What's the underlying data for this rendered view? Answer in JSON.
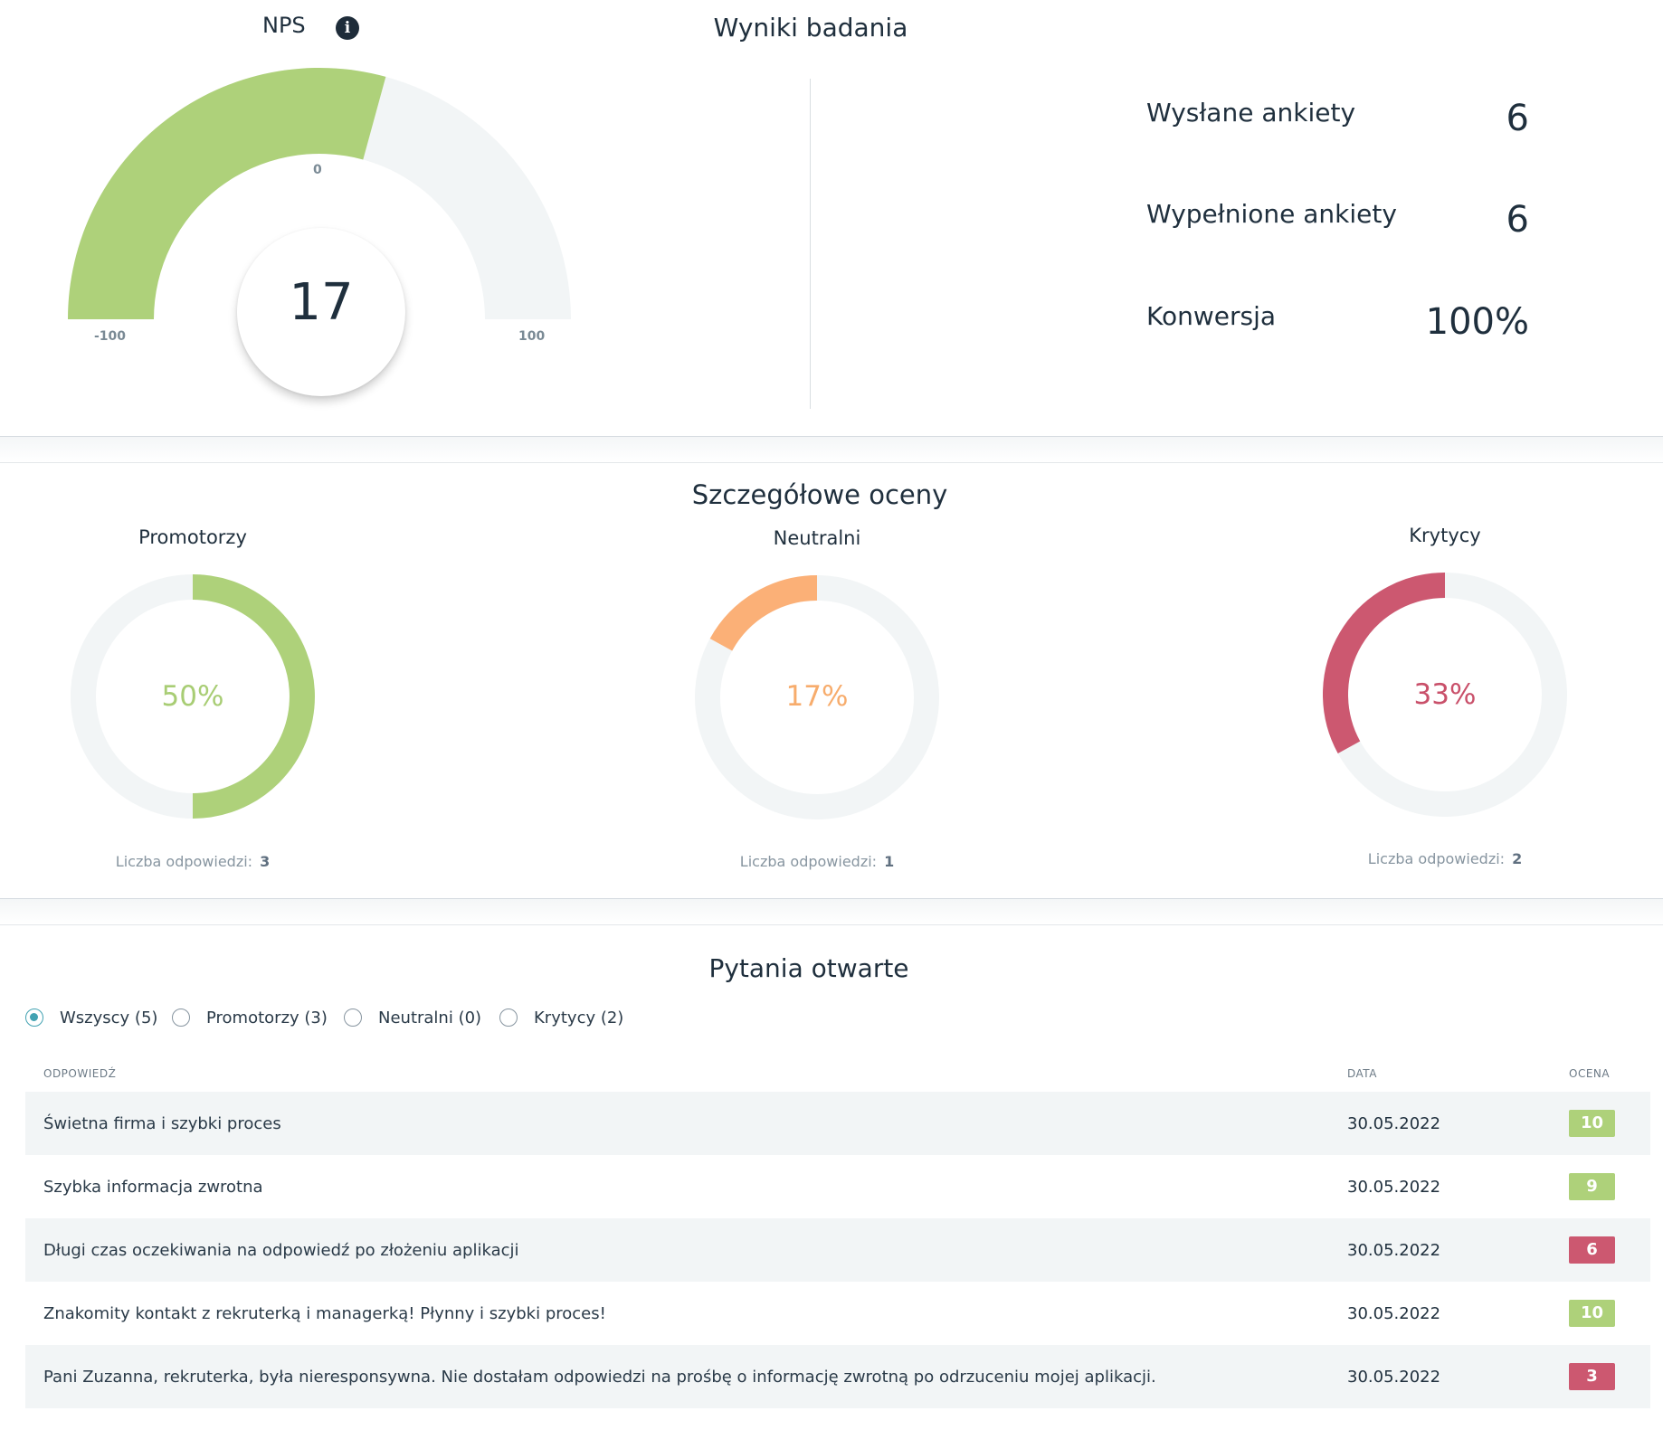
{
  "colors": {
    "promoters": "#aed17a",
    "neutral": "#fbb077",
    "critics": "#cc5870",
    "track": "#f2f5f6",
    "accent": "#42a2b2"
  },
  "nps": {
    "title": "NPS",
    "info_icon": "info-icon",
    "value": "17",
    "value_number": 17,
    "scale_min": -100,
    "scale_max": 100,
    "tick_min": "-100",
    "tick_zero": "0",
    "tick_max": "100"
  },
  "results": {
    "title": "Wyniki badania",
    "stats": [
      {
        "label": "Wysłane ankiety",
        "value": "6"
      },
      {
        "label": "Wypełnione ankiety",
        "value": "6"
      },
      {
        "label": "Konwersja",
        "value": "100%"
      }
    ]
  },
  "details": {
    "title": "Szczegółowe oceny",
    "count_label": "Liczba odpowiedzi:",
    "groups": [
      {
        "title": "Promotorzy",
        "percent": "50%",
        "fraction": 0.5,
        "direction": "clockwise",
        "count": "3"
      },
      {
        "title": "Neutralni",
        "percent": "17%",
        "fraction": 0.17,
        "direction": "counterclockwise",
        "count": "1"
      },
      {
        "title": "Krytycy",
        "percent": "33%",
        "fraction": 0.33,
        "direction": "counterclockwise",
        "count": "2"
      }
    ]
  },
  "open_questions": {
    "title": "Pytania otwarte",
    "filters": [
      {
        "label": "Wszyscy (5)",
        "checked": true
      },
      {
        "label": "Promotorzy (3)",
        "checked": false
      },
      {
        "label": "Neutralni (0)",
        "checked": false
      },
      {
        "label": "Krytycy (2)",
        "checked": false
      }
    ],
    "columns": {
      "answer": "ODPOWIEDŹ",
      "date": "DATA",
      "rating": "OCENA"
    },
    "rows": [
      {
        "text": "Świetna firma i szybki proces",
        "date": "30.05.2022",
        "score": "10",
        "category": "promoters"
      },
      {
        "text": "Szybka informacja zwrotna",
        "date": "30.05.2022",
        "score": "9",
        "category": "promoters"
      },
      {
        "text": "Długi czas oczekiwania na odpowiedź po złożeniu aplikacji",
        "date": "30.05.2022",
        "score": "6",
        "category": "critics"
      },
      {
        "text": "Znakomity kontakt z rekruterką i managerką! Płynny i szybki proces!",
        "date": "30.05.2022",
        "score": "10",
        "category": "promoters"
      },
      {
        "text": "Pani Zuzanna, rekruterka, była nieresponsywna. Nie dostałam odpowiedzi na prośbę o informację zwrotną po odrzuceniu mojej aplikacji.",
        "date": "30.05.2022",
        "score": "3",
        "category": "critics"
      }
    ]
  }
}
